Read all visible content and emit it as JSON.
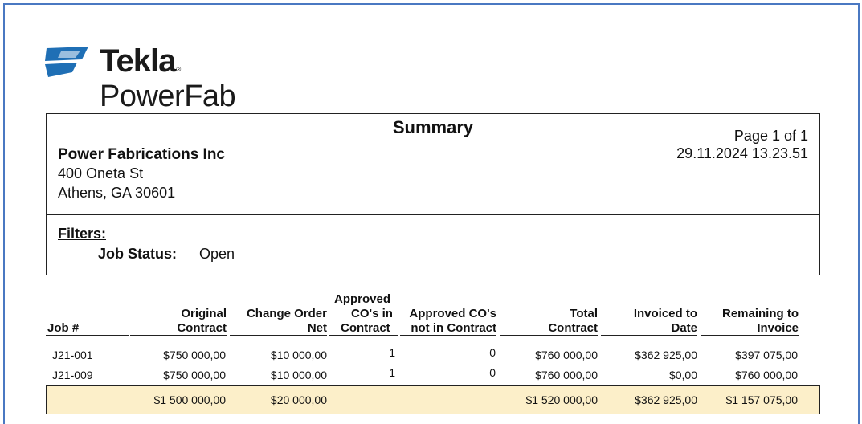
{
  "logo": {
    "brand": "Tekla",
    "registered": "®",
    "product": "PowerFab"
  },
  "report": {
    "title": "Summary",
    "page": "Page 1 of 1",
    "datetime": "29.11.2024 13.23.51",
    "company": "Power Fabrications Inc",
    "address_line1": "400 Oneta St",
    "address_line2": "Athens, GA  30601"
  },
  "filters": {
    "title": "Filters:",
    "items": [
      {
        "key": "Job Status:",
        "value": "Open"
      }
    ]
  },
  "table": {
    "headers": {
      "job": "Job #",
      "original_1": "Original",
      "original_2": "Contract",
      "change_1": "Change Order",
      "change_2": "Net",
      "approved_1": "Approved",
      "approved_2": "CO's in",
      "approved_3": "Contract",
      "approved_not_1": "Approved CO's",
      "approved_not_2": "not in Contract",
      "total_1": "Total",
      "total_2": "Contract",
      "invoiced_1": "Invoiced to",
      "invoiced_2": "Date",
      "remaining_1": "Remaining to",
      "remaining_2": "Invoice"
    },
    "rows": [
      {
        "job": "J21-001",
        "original": "$750 000,00",
        "change_order": "$10 000,00",
        "approved_in": "1",
        "approved_not_in": "0",
        "total": "$760 000,00",
        "invoiced": "$362 925,00",
        "remaining": "$397 075,00"
      },
      {
        "job": "J21-009",
        "original": "$750 000,00",
        "change_order": "$10 000,00",
        "approved_in": "1",
        "approved_not_in": "0",
        "total": "$760 000,00",
        "invoiced": "$0,00",
        "remaining": "$760 000,00"
      }
    ],
    "totals": {
      "original": "$1 500 000,00",
      "change_order": "$20 000,00",
      "total": "$1 520 000,00",
      "invoiced": "$362 925,00",
      "remaining": "$1 157 075,00"
    }
  },
  "colors": {
    "frame": "#4a78c2",
    "logo_blue": "#1f6fb5",
    "totals_bg": "#fcefc9"
  }
}
